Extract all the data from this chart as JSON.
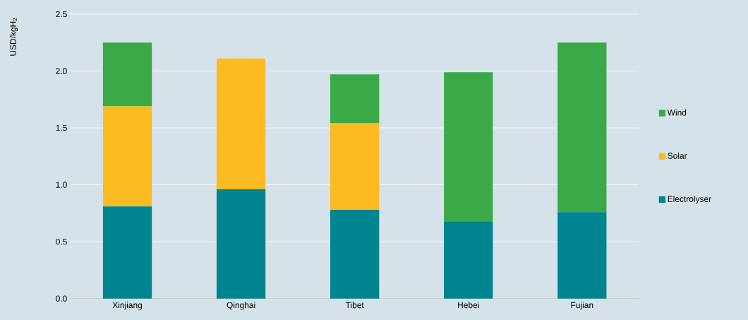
{
  "chart_data": {
    "type": "bar",
    "stacked": true,
    "ylabel": "USD/kgH$_{2}$",
    "categories": [
      "Xinjiang",
      "Qinghai",
      "Tibet",
      "Hebei",
      "Fujian"
    ],
    "series": [
      {
        "name": "Electrolyser",
        "color": "#00848f",
        "values": [
          0.81,
          0.96,
          0.78,
          0.68,
          0.76
        ]
      },
      {
        "name": "Solar",
        "color": "#fbbb21",
        "values": [
          0.88,
          1.15,
          0.76,
          0,
          0
        ]
      },
      {
        "name": "Wind",
        "color": "#3aaa48",
        "values": [
          0.56,
          0,
          0.43,
          1.31,
          1.49
        ]
      }
    ],
    "ylim": [
      0,
      2.5
    ],
    "yticks": [
      {
        "value": 0,
        "label": "0.0"
      },
      {
        "value": 0.5,
        "label": "0.5"
      },
      {
        "value": 1,
        "label": "1.0"
      },
      {
        "value": 1.5,
        "label": "1.5"
      },
      {
        "value": 2,
        "label": "2.0"
      },
      {
        "value": 2.5,
        "label": "2.5"
      }
    ],
    "grid": "y",
    "legend": "right"
  }
}
